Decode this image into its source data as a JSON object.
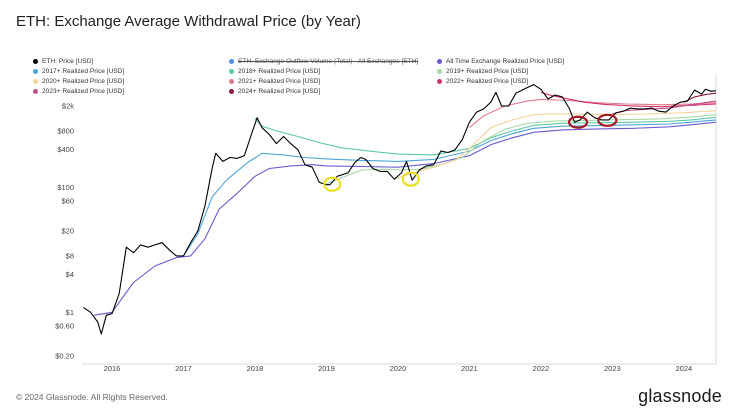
{
  "header": {
    "title": "ETH: Exchange Average Withdrawal Price (by Year)"
  },
  "legend": [
    {
      "label": "ETH: Price [USD]",
      "color": "#000000",
      "struck": false
    },
    {
      "label": "ETH: Exchange Outflow Volume (Total) - All Exchanges [ETH]",
      "color": "#4a90e2",
      "struck": true
    },
    {
      "label": "All Time Exchange Realized Price [USD]",
      "color": "#6a5acd",
      "struck": false
    },
    {
      "label": "2017+ Realized Price [USD]",
      "color": "#4ea5d9",
      "struck": false
    },
    {
      "label": "2018+ Realized Price [USD]",
      "color": "#5ec9a8",
      "struck": false
    },
    {
      "label": "2019+ Realized Price [USD]",
      "color": "#a8d8a8",
      "struck": false
    },
    {
      "label": "2020+ Realized Price [USD]",
      "color": "#f2d49b",
      "struck": false
    },
    {
      "label": "2021+ Realized Price [USD]",
      "color": "#e07a8a",
      "struck": false
    },
    {
      "label": "2022+ Realized Price [USD]",
      "color": "#d0306a",
      "struck": false
    },
    {
      "label": "2023+ Realized Price [USD]",
      "color": "#c0508a",
      "struck": false
    },
    {
      "label": "2024+ Realized Price [USD]",
      "color": "#8b1a3a",
      "struck": false
    }
  ],
  "chart_data": {
    "type": "line",
    "title": "ETH: Exchange Average Withdrawal Price (by Year)",
    "y_scale": "log",
    "ylim": [
      0.2,
      3000
    ],
    "y_ticks": [
      {
        "value": 0.2,
        "label": "$0.20"
      },
      {
        "value": 0.6,
        "label": "$0.60"
      },
      {
        "value": 1,
        "label": "$1"
      },
      {
        "value": 4,
        "label": "$4"
      },
      {
        "value": 8,
        "label": "$8"
      },
      {
        "value": 20,
        "label": "$20"
      },
      {
        "value": 60,
        "label": "$60"
      },
      {
        "value": 100,
        "label": "$100"
      },
      {
        "value": 400,
        "label": "$400"
      },
      {
        "value": 800,
        "label": "$800"
      },
      {
        "value": 2000,
        "label": "$2k"
      }
    ],
    "xlim": [
      2015.58,
      2024.45
    ],
    "x_ticks": [
      {
        "value": 2016,
        "label": "2016"
      },
      {
        "value": 2017,
        "label": "2017"
      },
      {
        "value": 2018,
        "label": "2018"
      },
      {
        "value": 2019,
        "label": "2019"
      },
      {
        "value": 2020,
        "label": "2020"
      },
      {
        "value": 2021,
        "label": "2021"
      },
      {
        "value": 2022,
        "label": "2022"
      },
      {
        "value": 2023,
        "label": "2023"
      },
      {
        "value": 2024,
        "label": "2024"
      }
    ],
    "grid": false,
    "series": [
      {
        "name": "ETH: Price [USD]",
        "color": "#000000",
        "width": 1.1,
        "points": [
          [
            2015.6,
            1.2
          ],
          [
            2015.7,
            1.0
          ],
          [
            2015.8,
            0.7
          ],
          [
            2015.85,
            0.45
          ],
          [
            2015.92,
            0.9
          ],
          [
            2016.0,
            0.95
          ],
          [
            2016.1,
            2.0
          ],
          [
            2016.2,
            11
          ],
          [
            2016.3,
            9
          ],
          [
            2016.4,
            12
          ],
          [
            2016.5,
            11
          ],
          [
            2016.6,
            12
          ],
          [
            2016.7,
            13
          ],
          [
            2016.8,
            10
          ],
          [
            2016.9,
            8
          ],
          [
            2016.95,
            8
          ],
          [
            2017.0,
            8
          ],
          [
            2017.1,
            13
          ],
          [
            2017.2,
            20
          ],
          [
            2017.3,
            50
          ],
          [
            2017.4,
            200
          ],
          [
            2017.45,
            350
          ],
          [
            2017.55,
            260
          ],
          [
            2017.65,
            300
          ],
          [
            2017.75,
            290
          ],
          [
            2017.85,
            320
          ],
          [
            2017.95,
            700
          ],
          [
            2018.03,
            1300
          ],
          [
            2018.1,
            900
          ],
          [
            2018.2,
            700
          ],
          [
            2018.3,
            500
          ],
          [
            2018.4,
            650
          ],
          [
            2018.5,
            500
          ],
          [
            2018.6,
            400
          ],
          [
            2018.7,
            230
          ],
          [
            2018.8,
            210
          ],
          [
            2018.9,
            120
          ],
          [
            2019.0,
            110
          ],
          [
            2019.05,
            110
          ],
          [
            2019.15,
            150
          ],
          [
            2019.3,
            170
          ],
          [
            2019.4,
            250
          ],
          [
            2019.48,
            300
          ],
          [
            2019.55,
            280
          ],
          [
            2019.65,
            200
          ],
          [
            2019.75,
            180
          ],
          [
            2019.85,
            180
          ],
          [
            2019.95,
            135
          ],
          [
            2020.05,
            170
          ],
          [
            2020.12,
            260
          ],
          [
            2020.2,
            130
          ],
          [
            2020.3,
            190
          ],
          [
            2020.4,
            220
          ],
          [
            2020.5,
            230
          ],
          [
            2020.6,
            380
          ],
          [
            2020.7,
            360
          ],
          [
            2020.8,
            400
          ],
          [
            2020.9,
            580
          ],
          [
            2021.0,
            1100
          ],
          [
            2021.1,
            1600
          ],
          [
            2021.2,
            1800
          ],
          [
            2021.3,
            2300
          ],
          [
            2021.37,
            3300
          ],
          [
            2021.45,
            2000
          ],
          [
            2021.55,
            2000
          ],
          [
            2021.65,
            3200
          ],
          [
            2021.8,
            3900
          ],
          [
            2021.9,
            4400
          ],
          [
            2022.0,
            3700
          ],
          [
            2022.1,
            2600
          ],
          [
            2022.2,
            3000
          ],
          [
            2022.3,
            2800
          ],
          [
            2022.4,
            1800
          ],
          [
            2022.47,
            1100
          ],
          [
            2022.55,
            1200
          ],
          [
            2022.65,
            1600
          ],
          [
            2022.75,
            1300
          ],
          [
            2022.85,
            1200
          ],
          [
            2022.95,
            1200
          ],
          [
            2023.05,
            1550
          ],
          [
            2023.15,
            1650
          ],
          [
            2023.25,
            1850
          ],
          [
            2023.35,
            1800
          ],
          [
            2023.45,
            1800
          ],
          [
            2023.55,
            1850
          ],
          [
            2023.65,
            1650
          ],
          [
            2023.75,
            1600
          ],
          [
            2023.85,
            2000
          ],
          [
            2023.95,
            2300
          ],
          [
            2024.05,
            2400
          ],
          [
            2024.15,
            3600
          ],
          [
            2024.25,
            3100
          ],
          [
            2024.3,
            3700
          ],
          [
            2024.38,
            3450
          ],
          [
            2024.45,
            3500
          ]
        ]
      },
      {
        "name": "All Time Exchange Realized Price [USD]",
        "color": "#6a5acd",
        "width": 1.1,
        "points": [
          [
            2015.75,
            0.9
          ],
          [
            2016.0,
            1.0
          ],
          [
            2016.3,
            3
          ],
          [
            2016.6,
            5.5
          ],
          [
            2016.9,
            7.5
          ],
          [
            2017.1,
            8
          ],
          [
            2017.3,
            15
          ],
          [
            2017.5,
            45
          ],
          [
            2017.75,
            80
          ],
          [
            2018.0,
            150
          ],
          [
            2018.2,
            200
          ],
          [
            2018.5,
            220
          ],
          [
            2018.8,
            230
          ],
          [
            2019.0,
            220
          ],
          [
            2019.5,
            215
          ],
          [
            2020.0,
            210
          ],
          [
            2020.5,
            240
          ],
          [
            2021.0,
            320
          ],
          [
            2021.3,
            480
          ],
          [
            2021.6,
            620
          ],
          [
            2021.9,
            760
          ],
          [
            2022.3,
            830
          ],
          [
            2022.8,
            860
          ],
          [
            2023.3,
            880
          ],
          [
            2023.8,
            930
          ],
          [
            2024.1,
            1000
          ],
          [
            2024.45,
            1100
          ]
        ]
      },
      {
        "name": "2017+ Realized Price [USD]",
        "color": "#4ea5d9",
        "width": 1.1,
        "points": [
          [
            2017.0,
            8
          ],
          [
            2017.2,
            18
          ],
          [
            2017.4,
            70
          ],
          [
            2017.6,
            130
          ],
          [
            2017.9,
            250
          ],
          [
            2018.1,
            350
          ],
          [
            2018.4,
            330
          ],
          [
            2018.7,
            300
          ],
          [
            2019.0,
            285
          ],
          [
            2019.5,
            270
          ],
          [
            2020.0,
            260
          ],
          [
            2020.5,
            280
          ],
          [
            2021.0,
            380
          ],
          [
            2021.3,
            560
          ],
          [
            2021.6,
            720
          ],
          [
            2021.9,
            880
          ],
          [
            2022.3,
            950
          ],
          [
            2022.8,
            970
          ],
          [
            2023.3,
            1000
          ],
          [
            2023.8,
            1030
          ],
          [
            2024.1,
            1100
          ],
          [
            2024.45,
            1200
          ]
        ]
      },
      {
        "name": "2018+ Realized Price [USD]",
        "color": "#5ec9a8",
        "width": 1.1,
        "points": [
          [
            2018.0,
            1250
          ],
          [
            2018.1,
            950
          ],
          [
            2018.3,
            800
          ],
          [
            2018.6,
            650
          ],
          [
            2018.9,
            520
          ],
          [
            2019.2,
            430
          ],
          [
            2019.6,
            380
          ],
          [
            2020.0,
            340
          ],
          [
            2020.5,
            330
          ],
          [
            2021.0,
            420
          ],
          [
            2021.3,
            620
          ],
          [
            2021.6,
            800
          ],
          [
            2021.9,
            980
          ],
          [
            2022.3,
            1060
          ],
          [
            2022.8,
            1080
          ],
          [
            2023.3,
            1100
          ],
          [
            2023.8,
            1140
          ],
          [
            2024.1,
            1200
          ],
          [
            2024.45,
            1320
          ]
        ]
      },
      {
        "name": "2019+ Realized Price [USD]",
        "color": "#a8d8a8",
        "width": 1.1,
        "points": [
          [
            2019.0,
            115
          ],
          [
            2019.2,
            140
          ],
          [
            2019.5,
            190
          ],
          [
            2019.8,
            195
          ],
          [
            2020.0,
            190
          ],
          [
            2020.3,
            195
          ],
          [
            2020.6,
            230
          ],
          [
            2020.9,
            300
          ],
          [
            2021.2,
            560
          ],
          [
            2021.5,
            850
          ],
          [
            2021.8,
            1050
          ],
          [
            2022.2,
            1150
          ],
          [
            2022.7,
            1180
          ],
          [
            2023.2,
            1210
          ],
          [
            2023.7,
            1250
          ],
          [
            2024.1,
            1330
          ],
          [
            2024.45,
            1450
          ]
        ]
      },
      {
        "name": "2020+ Realized Price [USD]",
        "color": "#f2d49b",
        "width": 1.1,
        "points": [
          [
            2020.0,
            140
          ],
          [
            2020.2,
            170
          ],
          [
            2020.5,
            210
          ],
          [
            2020.8,
            270
          ],
          [
            2021.0,
            420
          ],
          [
            2021.3,
            900
          ],
          [
            2021.6,
            1200
          ],
          [
            2021.9,
            1450
          ],
          [
            2022.2,
            1500
          ],
          [
            2022.6,
            1480
          ],
          [
            2023.0,
            1470
          ],
          [
            2023.5,
            1490
          ],
          [
            2024.0,
            1560
          ],
          [
            2024.45,
            1680
          ]
        ]
      },
      {
        "name": "2021+ Realized Price [USD]",
        "color": "#e07a8a",
        "width": 1.1,
        "points": [
          [
            2021.0,
            900
          ],
          [
            2021.2,
            1400
          ],
          [
            2021.5,
            2000
          ],
          [
            2021.8,
            2400
          ],
          [
            2022.0,
            2550
          ],
          [
            2022.4,
            2450
          ],
          [
            2022.8,
            2250
          ],
          [
            2023.2,
            2150
          ],
          [
            2023.7,
            2100
          ],
          [
            2024.1,
            2150
          ],
          [
            2024.45,
            2250
          ]
        ]
      },
      {
        "name": "2022+ Realized Price [USD]",
        "color": "#d0306a",
        "width": 1.1,
        "points": [
          [
            2022.0,
            3300
          ],
          [
            2022.15,
            2950
          ],
          [
            2022.35,
            2650
          ],
          [
            2022.6,
            2300
          ],
          [
            2022.9,
            2120
          ],
          [
            2023.3,
            2000
          ],
          [
            2023.7,
            1950
          ],
          [
            2024.1,
            2050
          ],
          [
            2024.45,
            2150
          ]
        ]
      },
      {
        "name": "2023+ Realized Price [USD]",
        "color": "#c0508a",
        "width": 1.1,
        "points": [
          [
            2023.0,
            1500
          ],
          [
            2023.2,
            1700
          ],
          [
            2023.5,
            1780
          ],
          [
            2023.8,
            1850
          ],
          [
            2024.1,
            2100
          ],
          [
            2024.45,
            2400
          ]
        ]
      },
      {
        "name": "2024+ Realized Price [USD]",
        "color": "#8b1a3a",
        "width": 1.1,
        "points": [
          [
            2024.0,
            2300
          ],
          [
            2024.15,
            2800
          ],
          [
            2024.3,
            3050
          ],
          [
            2024.45,
            3200
          ]
        ]
      }
    ],
    "annotations": [
      {
        "type": "ellipse",
        "color": "#e8e020",
        "x": 2019.08,
        "y": 112
      },
      {
        "type": "ellipse",
        "color": "#e8e020",
        "x": 2020.18,
        "y": 135
      },
      {
        "type": "ellipse",
        "color": "#a81822",
        "x": 2022.52,
        "y": 1100
      },
      {
        "type": "ellipse",
        "color": "#a81822",
        "x": 2022.93,
        "y": 1180
      }
    ]
  },
  "footer": {
    "copyright": "© 2024 Glassnode. All Rights Reserved.",
    "brand": "glassnode"
  }
}
